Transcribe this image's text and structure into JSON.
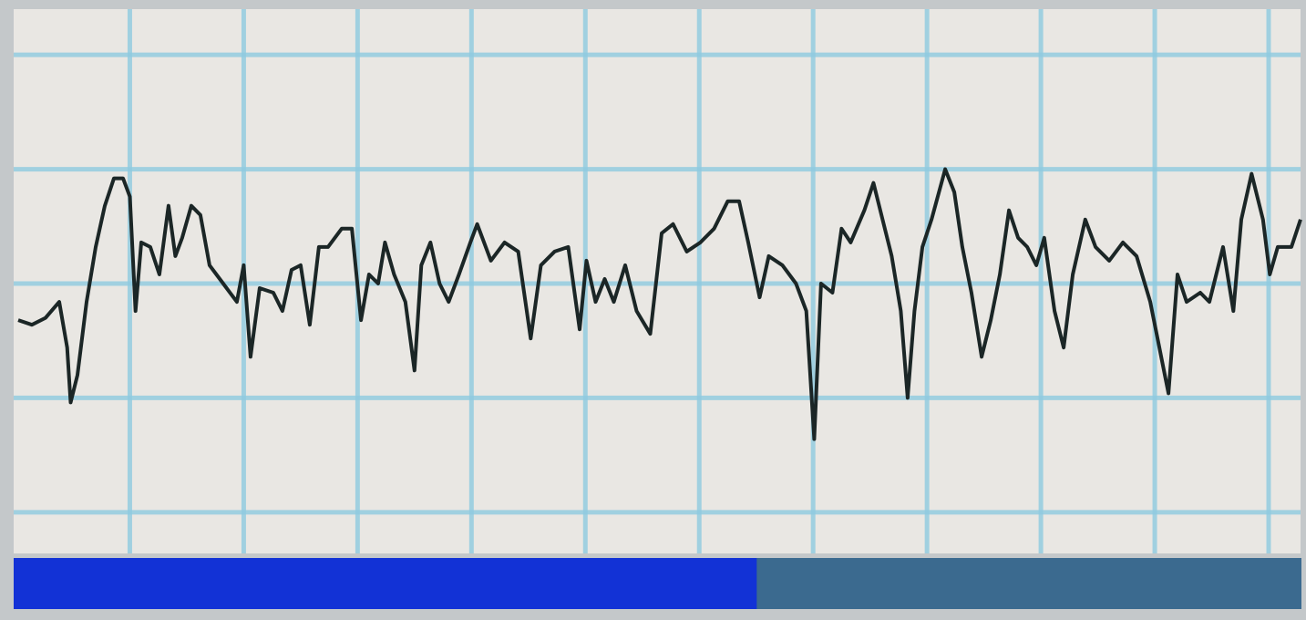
{
  "chart_data": {
    "type": "line",
    "color": "#1b2626",
    "grid": true,
    "grid_color": "#8fcbe0",
    "xlim": [
      -0.02,
      11.28
    ],
    "ylim": [
      -0.36,
      4.4
    ],
    "xticks": [
      1,
      2,
      3,
      4,
      5,
      6,
      7,
      8,
      9,
      10,
      11
    ],
    "yticks": [
      0,
      1,
      2,
      3,
      4
    ],
    "x": [
      0.02,
      0.14,
      0.26,
      0.38,
      0.45,
      0.48,
      0.54,
      0.62,
      0.7,
      0.78,
      0.86,
      0.94,
      1.0,
      1.05,
      1.1,
      1.18,
      1.26,
      1.34,
      1.4,
      1.46,
      1.54,
      1.62,
      1.7,
      1.82,
      1.94,
      2.0,
      2.06,
      2.14,
      2.26,
      2.34,
      2.42,
      2.5,
      2.58,
      2.66,
      2.74,
      2.86,
      2.95,
      3.03,
      3.1,
      3.18,
      3.24,
      3.32,
      3.42,
      3.5,
      3.56,
      3.64,
      3.72,
      3.8,
      3.89,
      3.99,
      4.05,
      4.17,
      4.29,
      4.41,
      4.52,
      4.61,
      4.73,
      4.85,
      4.95,
      5.01,
      5.09,
      5.17,
      5.25,
      5.35,
      5.45,
      5.57,
      5.67,
      5.77,
      5.89,
      6.01,
      6.13,
      6.25,
      6.35,
      6.43,
      6.53,
      6.61,
      6.73,
      6.85,
      6.94,
      7.01,
      7.07,
      7.17,
      7.25,
      7.33,
      7.45,
      7.53,
      7.61,
      7.69,
      7.77,
      7.83,
      7.89,
      7.96,
      8.04,
      8.16,
      8.24,
      8.31,
      8.39,
      8.48,
      8.56,
      8.64,
      8.72,
      8.8,
      8.88,
      8.96,
      9.03,
      9.12,
      9.2,
      9.28,
      9.39,
      9.48,
      9.6,
      9.72,
      9.84,
      9.96,
      10.04,
      10.12,
      10.2,
      10.28,
      10.4,
      10.48,
      10.6,
      10.69,
      10.76,
      10.85,
      10.95,
      11.01,
      11.08,
      11.2,
      11.28
    ],
    "values": [
      1.68,
      1.64,
      1.7,
      1.84,
      1.44,
      0.96,
      1.2,
      1.84,
      2.32,
      2.68,
      2.92,
      2.92,
      2.76,
      1.76,
      2.36,
      2.32,
      2.08,
      2.68,
      2.24,
      2.4,
      2.68,
      2.6,
      2.16,
      2.0,
      1.84,
      2.16,
      1.36,
      1.96,
      1.92,
      1.76,
      2.12,
      2.16,
      1.64,
      2.32,
      2.32,
      2.48,
      2.48,
      1.68,
      2.08,
      2.0,
      2.36,
      2.08,
      1.84,
      1.24,
      2.16,
      2.36,
      2.0,
      1.84,
      2.08,
      2.36,
      2.52,
      2.2,
      2.36,
      2.28,
      1.52,
      2.16,
      2.28,
      2.32,
      1.6,
      2.2,
      1.84,
      2.04,
      1.84,
      2.16,
      1.76,
      1.56,
      2.44,
      2.52,
      2.28,
      2.36,
      2.48,
      2.72,
      2.72,
      2.36,
      1.88,
      2.24,
      2.16,
      2.0,
      1.76,
      0.64,
      2.0,
      1.92,
      2.48,
      2.36,
      2.64,
      2.88,
      2.56,
      2.24,
      1.76,
      1.0,
      1.76,
      2.32,
      2.56,
      3.0,
      2.8,
      2.32,
      1.92,
      1.36,
      1.68,
      2.08,
      2.64,
      2.4,
      2.32,
      2.16,
      2.4,
      1.76,
      1.44,
      2.08,
      2.56,
      2.32,
      2.2,
      2.36,
      2.24,
      1.84,
      1.44,
      1.04,
      2.08,
      1.84,
      1.92,
      1.84,
      2.32,
      1.76,
      2.56,
      2.96,
      2.56,
      2.08,
      2.32,
      2.32,
      2.56
    ],
    "progress": 0.577,
    "progress_color": "#1232d6",
    "progress_track_color": "#3b6a8f"
  }
}
